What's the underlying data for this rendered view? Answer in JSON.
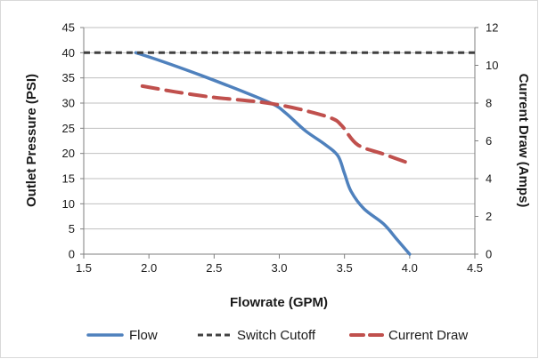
{
  "chart_data": {
    "type": "line",
    "xlabel": "Flowrate (GPM)",
    "ylabel": "Outlet Pressure (PSI)",
    "y2label": "Current Draw (Amps)",
    "xlim": [
      1.5,
      4.5
    ],
    "ylim": [
      0,
      45
    ],
    "y2lim": [
      0,
      12
    ],
    "x_ticks": [
      "1.5",
      "2.0",
      "2.5",
      "3.0",
      "3.5",
      "4.0",
      "4.5"
    ],
    "y_ticks": [
      "0",
      "5",
      "10",
      "15",
      "20",
      "25",
      "30",
      "35",
      "40",
      "45"
    ],
    "y2_ticks": [
      "0",
      "2",
      "4",
      "6",
      "8",
      "10",
      "12"
    ],
    "grid": true,
    "legend_position": "bottom",
    "series": [
      {
        "name": "Flow",
        "axis": "left",
        "color": "#4f81bd",
        "style": "solid",
        "x": [
          1.9,
          2.1,
          2.4,
          2.7,
          2.95,
          3.05,
          3.2,
          3.35,
          3.45,
          3.5,
          3.55,
          3.65,
          3.8,
          3.9,
          4.0
        ],
        "y": [
          40,
          38.3,
          35.5,
          32.5,
          29.8,
          28,
          24.5,
          21.8,
          19.5,
          16,
          12.5,
          9,
          6,
          3,
          0
        ]
      },
      {
        "name": "Switch Cutoff",
        "axis": "left",
        "color": "#404040",
        "style": "dashed",
        "x": [
          1.5,
          4.5
        ],
        "y": [
          40,
          40
        ]
      },
      {
        "name": "Current Draw",
        "axis": "right",
        "color": "#c0504d",
        "style": "dashed",
        "x": [
          1.95,
          2.2,
          2.5,
          2.8,
          3.0,
          3.2,
          3.4,
          3.48,
          3.6,
          3.8,
          4.0
        ],
        "y": [
          8.9,
          8.6,
          8.3,
          8.1,
          7.9,
          7.6,
          7.2,
          6.8,
          5.8,
          5.3,
          4.8
        ]
      }
    ]
  }
}
